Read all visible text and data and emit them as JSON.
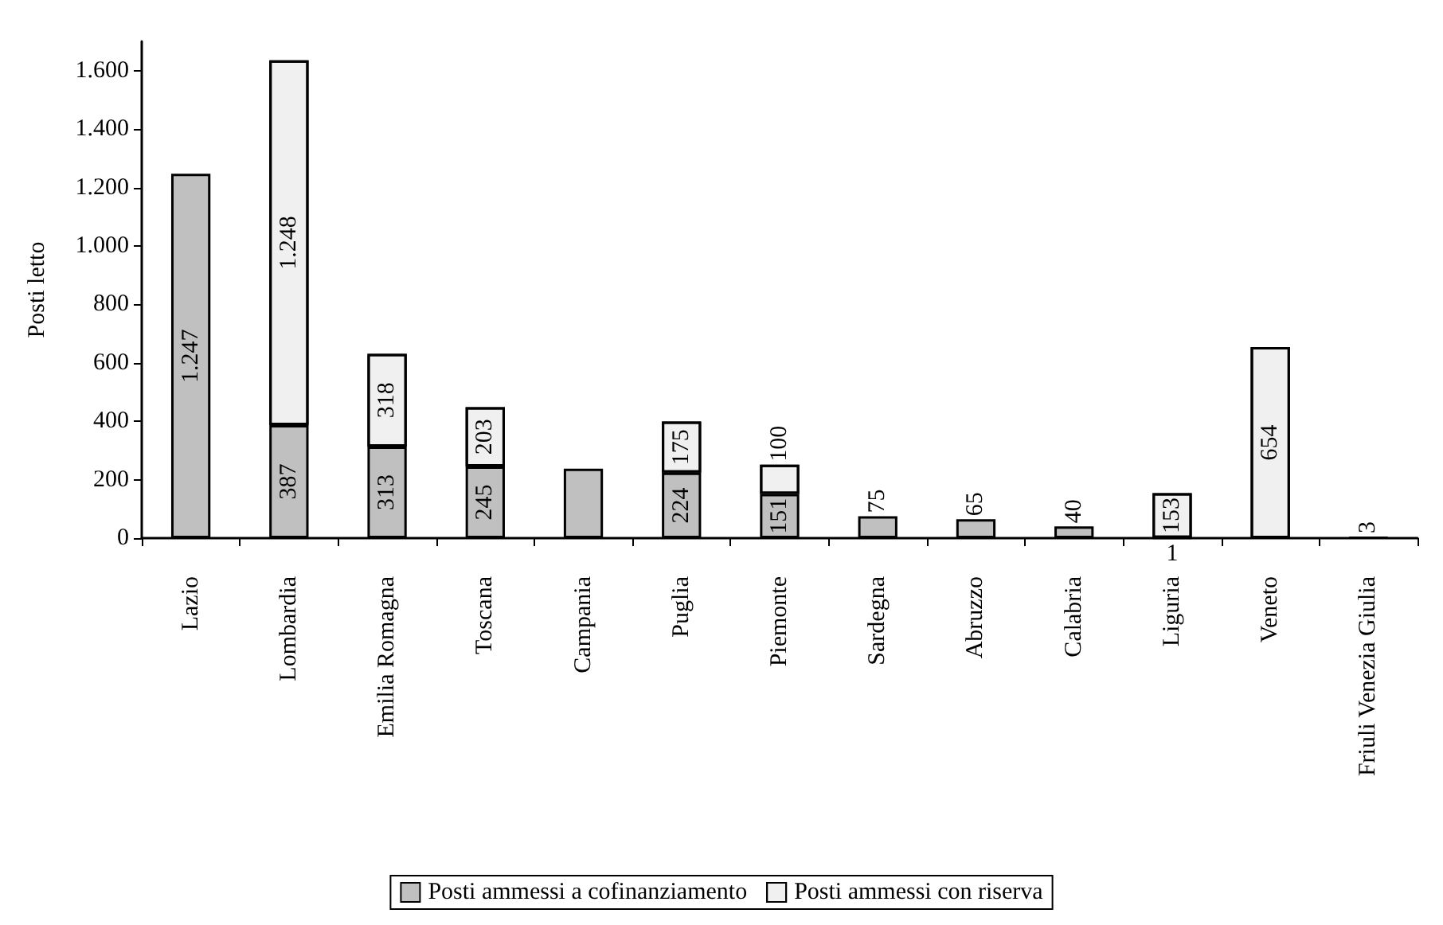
{
  "chart_data": {
    "type": "bar",
    "stacked": true,
    "ylabel": "Posti letto",
    "categories": [
      "Lazio",
      "Lombardia",
      "Emilia Romagna",
      "Toscana",
      "Campania",
      "Puglia",
      "Piemonte",
      "Sardegna",
      "Abruzzo",
      "Calabria",
      "Liguria",
      "Veneto",
      "Friuli Venezia Giulia"
    ],
    "series": [
      {
        "name": "Posti ammessi a cofinanziamento",
        "color": "#c0c0c0",
        "values": [
          1247,
          387,
          313,
          245,
          238,
          224,
          151,
          75,
          65,
          40,
          1,
          null,
          null
        ],
        "value_labels": [
          "1.247",
          "387",
          "313",
          "245",
          null,
          "224",
          "151",
          "75",
          "65",
          "40",
          "1",
          null,
          null
        ]
      },
      {
        "name": "Posti ammessi con riserva",
        "color": "#f0f0f0",
        "values": [
          null,
          1248,
          318,
          203,
          null,
          175,
          100,
          null,
          null,
          null,
          153,
          654,
          3
        ],
        "value_labels": [
          null,
          "1.248",
          "318",
          "203",
          null,
          "175",
          "100",
          null,
          null,
          null,
          "153",
          "654",
          "3"
        ]
      }
    ],
    "ylim": [
      0,
      1700
    ],
    "yticks": [
      0,
      {
        "value": 200,
        "label": "200"
      },
      {
        "value": 400,
        "label": "400"
      },
      {
        "value": 600,
        "label": "600"
      },
      {
        "value": 800,
        "label": "800"
      },
      {
        "value": 1000,
        "label": "1.000"
      },
      {
        "value": 1200,
        "label": "1.200"
      },
      {
        "value": 1400,
        "label": "1.400"
      },
      {
        "value": 1600,
        "label": "1.600"
      }
    ],
    "grid": false,
    "legend": "bottom"
  }
}
